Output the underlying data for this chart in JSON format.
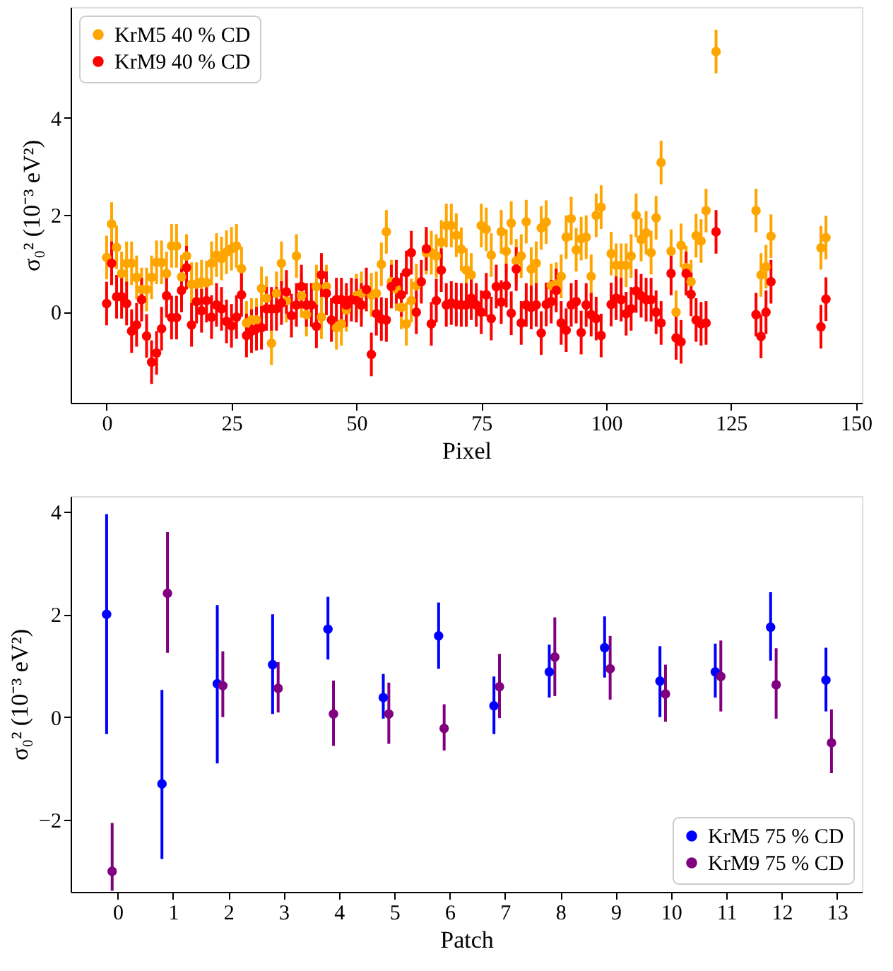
{
  "chart_data": [
    {
      "type": "scatter",
      "xlabel": "Pixel",
      "ylabel": "σ₀² (10⁻³ eV²)",
      "xlim": [
        -7.2,
        151.2
      ],
      "ylim": [
        -1.88,
        6.29
      ],
      "xticks": [
        0,
        25,
        50,
        75,
        100,
        125,
        150
      ],
      "yticks": [
        0,
        2,
        4
      ],
      "grid": false,
      "legend": "top left",
      "marker": "circle",
      "series": [
        {
          "name": "KrM5 40 % CD",
          "color": "#ffa500",
          "x": [
            0,
            1,
            2,
            3,
            4,
            5,
            6,
            7,
            8,
            9,
            10,
            11,
            12,
            13,
            14,
            15,
            16,
            17,
            18,
            19,
            20,
            21,
            22,
            23,
            24,
            25,
            26,
            27,
            28,
            29,
            30,
            31,
            32,
            33,
            34,
            35,
            36,
            38,
            39,
            40,
            42,
            43,
            44,
            46,
            47,
            48,
            50,
            51,
            53,
            54,
            55,
            56,
            57,
            58,
            59,
            60,
            61,
            62,
            64,
            65,
            66,
            67,
            68,
            69,
            70,
            71,
            72,
            73,
            75,
            76,
            77,
            79,
            80,
            81,
            82,
            83,
            84,
            85,
            86,
            87,
            88,
            89,
            90,
            91,
            92,
            93,
            94,
            95,
            96,
            97,
            98,
            99,
            101,
            102,
            103,
            104,
            105,
            106,
            107,
            108,
            109,
            110,
            111,
            113,
            114,
            115,
            116,
            117,
            118,
            119,
            120,
            122,
            130,
            131,
            132,
            133,
            143,
            144
          ],
          "values": [
            1.12,
            1.81,
            1.33,
            0.79,
            1.0,
            1.0,
            0.71,
            0.46,
            0.46,
            0.71,
            1.02,
            1.02,
            0.79,
            1.36,
            1.36,
            0.72,
            1.15,
            0.57,
            0.57,
            0.62,
            0.6,
            1.0,
            1.17,
            1.1,
            1.23,
            1.3,
            1.36,
            0.89,
            -0.23,
            -0.17,
            -0.17,
            0.48,
            0.28,
            -0.65,
            0.38,
            1.0,
            0.23,
            1.15,
            0.33,
            -0.06,
            0.52,
            -0.11,
            0.52,
            -0.33,
            -0.25,
            0.04,
            0.33,
            0.38,
            0.35,
            0.38,
            0.98,
            1.65,
            0.62,
            0.47,
            0.09,
            -0.25,
            0.23,
            0.54,
            1.22,
            1.22,
            1.15,
            1.44,
            1.78,
            1.78,
            1.58,
            1.29,
            0.86,
            0.76,
            1.78,
            1.7,
            1.17,
            1.65,
            1.25,
            1.83,
            1.05,
            1.15,
            1.86,
            0.88,
            1.0,
            1.73,
            1.85,
            0.54,
            0.57,
            0.73,
            1.54,
            1.92,
            1.28,
            1.51,
            1.54,
            0.73,
            1.99,
            2.16,
            1.2,
            0.96,
            0.96,
            0.96,
            1.15,
            1.99,
            1.49,
            1.63,
            1.22,
            1.94,
            3.08,
            1.25,
            -0.01,
            1.37,
            0.91,
            0.62,
            1.57,
            1.46,
            2.09,
            5.37,
            2.09,
            0.76,
            0.93,
            1.56,
            1.32,
            1.53
          ],
          "errors": [
            0.45,
            0.45,
            0.45,
            0.45,
            0.45,
            0.45,
            0.45,
            0.45,
            0.45,
            0.45,
            0.45,
            0.45,
            0.45,
            0.45,
            0.45,
            0.45,
            0.45,
            0.45,
            0.45,
            0.45,
            0.45,
            0.45,
            0.45,
            0.45,
            0.45,
            0.45,
            0.45,
            0.45,
            0.45,
            0.45,
            0.45,
            0.45,
            0.45,
            0.45,
            0.45,
            0.45,
            0.45,
            0.45,
            0.45,
            0.45,
            0.45,
            0.45,
            0.45,
            0.45,
            0.45,
            0.45,
            0.45,
            0.45,
            0.45,
            0.45,
            0.45,
            0.45,
            0.45,
            0.45,
            0.45,
            0.45,
            0.45,
            0.45,
            0.45,
            0.45,
            0.45,
            0.45,
            0.45,
            0.45,
            0.45,
            0.45,
            0.45,
            0.45,
            0.45,
            0.45,
            0.45,
            0.45,
            0.45,
            0.45,
            0.45,
            0.45,
            0.45,
            0.45,
            0.45,
            0.45,
            0.45,
            0.45,
            0.45,
            0.45,
            0.45,
            0.45,
            0.45,
            0.45,
            0.45,
            0.45,
            0.45,
            0.45,
            0.45,
            0.45,
            0.45,
            0.45,
            0.45,
            0.45,
            0.45,
            0.45,
            0.45,
            0.45,
            0.45,
            0.45,
            0.45,
            0.45,
            0.45,
            0.45,
            0.45,
            0.45,
            0.45,
            0.45,
            0.45,
            0.45,
            0.45,
            0.45,
            0.45,
            0.45
          ]
        },
        {
          "name": "KrM9 40 % CD",
          "color": "#ff0000",
          "x": [
            0,
            1,
            2,
            3,
            4,
            5,
            6,
            7,
            8,
            9,
            10,
            11,
            12,
            13,
            14,
            15,
            16,
            17,
            18,
            19,
            20,
            21,
            22,
            23,
            24,
            25,
            26,
            27,
            28,
            29,
            30,
            31,
            32,
            33,
            34,
            35,
            36,
            37,
            38,
            39,
            40,
            41,
            42,
            43,
            44,
            45,
            46,
            47,
            48,
            49,
            50,
            51,
            52,
            53,
            54,
            55,
            56,
            57,
            58,
            59,
            60,
            61,
            62,
            63,
            64,
            65,
            66,
            67,
            68,
            69,
            70,
            71,
            72,
            73,
            74,
            75,
            76,
            77,
            78,
            79,
            80,
            81,
            82,
            83,
            84,
            85,
            86,
            87,
            88,
            89,
            90,
            91,
            92,
            93,
            94,
            95,
            96,
            97,
            98,
            99,
            101,
            102,
            103,
            104,
            105,
            106,
            107,
            108,
            109,
            110,
            111,
            113,
            114,
            115,
            116,
            117,
            118,
            119,
            120,
            122,
            130,
            131,
            132,
            133,
            143,
            144
          ],
          "values": [
            0.17,
            1.0,
            0.31,
            0.31,
            0.17,
            -0.4,
            -0.27,
            0.25,
            -0.5,
            -1.04,
            -0.85,
            -0.35,
            0.33,
            -0.12,
            -0.12,
            0.44,
            0.91,
            -0.27,
            0.21,
            0.02,
            0.23,
            -0.11,
            0.14,
            0.06,
            -0.2,
            -0.29,
            -0.11,
            0.35,
            -0.49,
            -0.4,
            -0.35,
            -0.33,
            0.06,
            0.06,
            0.06,
            0.18,
            0.41,
            -0.08,
            0.14,
            0.52,
            0.14,
            0.14,
            -0.3,
            0.76,
            0.38,
            -0.17,
            0.25,
            0.25,
            0.14,
            0.25,
            0.23,
            0.14,
            0.46,
            -0.88,
            -0.04,
            -0.15,
            -0.17,
            0.52,
            0.62,
            0.35,
            0.81,
            1.22,
            -0.01,
            0.62,
            1.3,
            -0.25,
            0.23,
            0.86,
            0.14,
            0.18,
            0.15,
            0.14,
            0.14,
            0.28,
            0.14,
            -0.01,
            0.35,
            -0.14,
            0.52,
            0.2,
            0.54,
            -0.03,
            0.88,
            -0.23,
            0.14,
            0.09,
            0.14,
            -0.44,
            0.15,
            0.21,
            0.44,
            -0.23,
            -0.38,
            0.14,
            0.21,
            -0.43,
            0.14,
            -0.06,
            -0.14,
            -0.49,
            0.15,
            0.28,
            0.25,
            -0.04,
            0.06,
            0.43,
            0.33,
            0.25,
            0.25,
            -0.01,
            -0.23,
            0.79,
            -0.54,
            -0.62,
            0.79,
            0.36,
            -0.17,
            -0.25,
            -0.23,
            1.65,
            -0.06,
            -0.51,
            -0.01,
            0.62,
            -0.31,
            0.26
          ],
          "errors": [
            0.45,
            0.45,
            0.45,
            0.45,
            0.45,
            0.45,
            0.45,
            0.45,
            0.45,
            0.45,
            0.45,
            0.45,
            0.45,
            0.45,
            0.45,
            0.45,
            0.45,
            0.45,
            0.45,
            0.45,
            0.45,
            0.45,
            0.45,
            0.45,
            0.45,
            0.45,
            0.45,
            0.45,
            0.45,
            0.45,
            0.45,
            0.45,
            0.45,
            0.45,
            0.45,
            0.45,
            0.45,
            0.45,
            0.45,
            0.45,
            0.45,
            0.45,
            0.45,
            0.45,
            0.45,
            0.45,
            0.45,
            0.45,
            0.45,
            0.45,
            0.45,
            0.45,
            0.45,
            0.45,
            0.45,
            0.45,
            0.45,
            0.45,
            0.45,
            0.45,
            0.45,
            0.45,
            0.45,
            0.45,
            0.45,
            0.45,
            0.45,
            0.45,
            0.45,
            0.45,
            0.45,
            0.45,
            0.45,
            0.45,
            0.45,
            0.45,
            0.45,
            0.45,
            0.45,
            0.45,
            0.45,
            0.45,
            0.45,
            0.45,
            0.45,
            0.45,
            0.45,
            0.45,
            0.45,
            0.45,
            0.45,
            0.45,
            0.45,
            0.45,
            0.45,
            0.45,
            0.45,
            0.45,
            0.45,
            0.45,
            0.45,
            0.45,
            0.45,
            0.45,
            0.45,
            0.45,
            0.45,
            0.45,
            0.45,
            0.45,
            0.45,
            0.45,
            0.45,
            0.45,
            0.45,
            0.45,
            0.45,
            0.45,
            0.45,
            0.45,
            0.45,
            0.45,
            0.45,
            0.45,
            0.45,
            0.45
          ]
        }
      ]
    },
    {
      "type": "scatter",
      "xlabel": "Patch",
      "ylabel": "σ₀² (10⁻³ eV²)",
      "xlim": [
        -0.85,
        13.45
      ],
      "ylim": [
        -3.4,
        4.3
      ],
      "xticks": [
        0,
        1,
        2,
        3,
        4,
        5,
        6,
        7,
        8,
        9,
        10,
        11,
        12,
        13
      ],
      "yticks": [
        -2,
        0,
        2,
        4
      ],
      "grid": false,
      "legend": "bottom right",
      "marker": "circle",
      "series": [
        {
          "name": "KrM5 75 % CD",
          "color": "#0000ff",
          "x": [
            -0.2,
            0.8,
            1.8,
            2.8,
            3.8,
            4.8,
            5.8,
            6.8,
            7.8,
            8.8,
            9.8,
            10.8,
            11.8,
            12.8
          ],
          "values": [
            2.0,
            -1.3,
            0.65,
            1.02,
            1.71,
            0.38,
            1.58,
            0.22,
            0.88,
            1.35,
            0.7,
            0.88,
            1.75,
            0.72
          ],
          "errors": [
            [
              -0.33,
              3.95
            ],
            [
              -2.76,
              0.53
            ],
            [
              -0.9,
              2.18
            ],
            [
              0.06,
              2.0
            ],
            [
              1.12,
              2.34
            ],
            [
              -0.03,
              0.84
            ],
            [
              0.94,
              2.23
            ],
            [
              -0.33,
              0.79
            ],
            [
              0.38,
              1.41
            ],
            [
              0.77,
              1.96
            ],
            [
              0,
              1.38
            ],
            [
              0.38,
              1.43
            ],
            [
              1.1,
              2.43
            ],
            [
              0.11,
              1.35
            ]
          ]
        },
        {
          "name": "KrM9 75 % CD",
          "color": "#800080",
          "x": [
            -0.1,
            0.9,
            1.9,
            2.9,
            3.9,
            4.9,
            5.9,
            6.9,
            7.9,
            8.9,
            9.9,
            10.9,
            11.9,
            12.9
          ],
          "values": [
            -3.0,
            2.41,
            0.61,
            0.56,
            0.06,
            0.06,
            -0.22,
            0.59,
            1.17,
            0.94,
            0.45,
            0.79,
            0.63,
            -0.5
          ],
          "errors": [
            [
              -3.38,
              -2.06
            ],
            [
              1.25,
              3.6
            ],
            [
              0,
              1.28
            ],
            [
              0.09,
              1.07
            ],
            [
              -0.56,
              0.71
            ],
            [
              -0.52,
              0.67
            ],
            [
              -0.65,
              0.25
            ],
            [
              -0.02,
              1.23
            ],
            [
              0.41,
              1.94
            ],
            [
              0.34,
              1.58
            ],
            [
              -0.09,
              1.02
            ],
            [
              0.11,
              1.49
            ],
            [
              -0.03,
              1.34
            ],
            [
              -1.09,
              0.15
            ]
          ]
        }
      ]
    }
  ]
}
